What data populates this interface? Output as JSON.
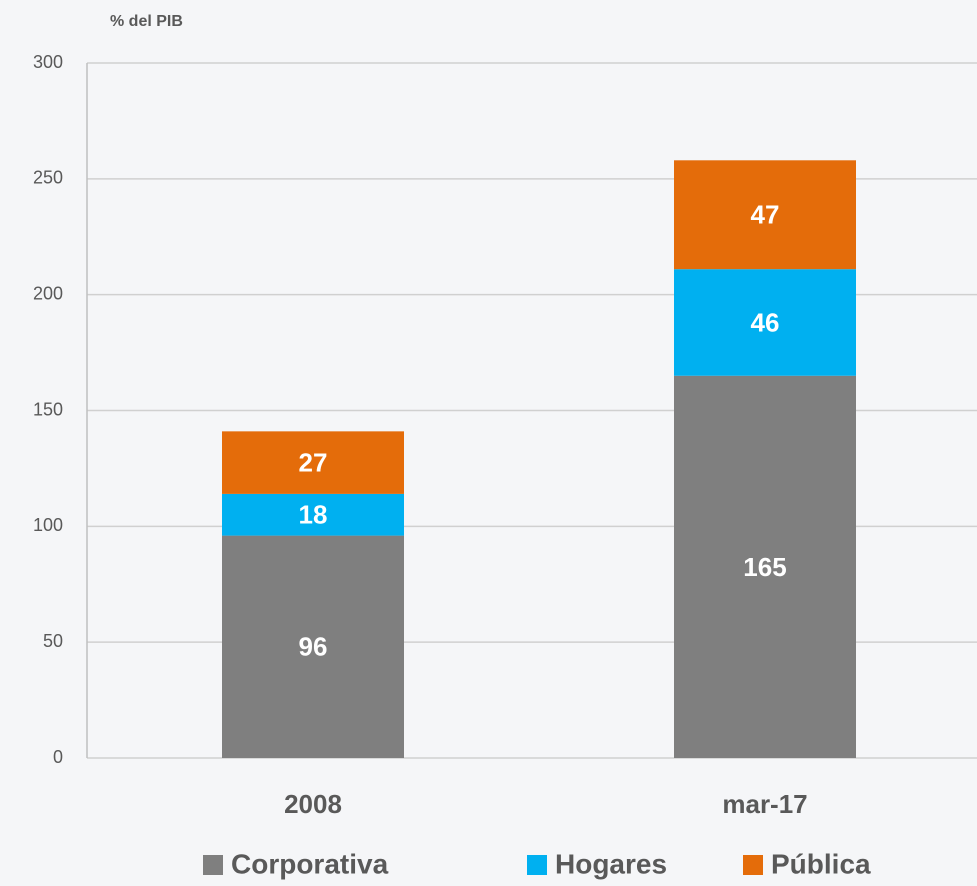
{
  "chart_data": {
    "type": "stacked_bar",
    "y_axis_label": "% del PIB",
    "categories": [
      "2008",
      "mar-17"
    ],
    "series": [
      {
        "name": "Corporativa",
        "color": "#7f7f7f",
        "values": [
          96,
          165
        ]
      },
      {
        "name": "Hogares",
        "color": "#00b0f0",
        "values": [
          18,
          46
        ]
      },
      {
        "name": "Pública",
        "color": "#e46c0a",
        "values": [
          27,
          47
        ]
      }
    ],
    "ylim": [
      0,
      300
    ],
    "yticks": [
      0,
      50,
      100,
      150,
      200,
      250,
      300
    ],
    "grid": true,
    "legend": "bottom"
  }
}
